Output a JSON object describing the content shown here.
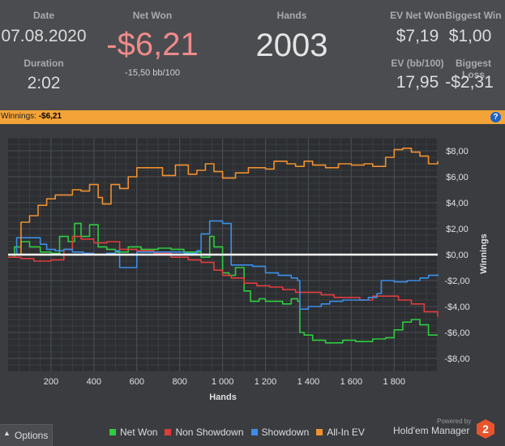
{
  "stats": {
    "date_label": "Date",
    "date_value": "07.08.2020",
    "duration_label": "Duration",
    "duration_value": "2:02",
    "netwon_label": "Net Won",
    "netwon_value": "-$6,21",
    "netwon_sub": "-15,50 bb/100",
    "hands_label": "Hands",
    "hands_value": "2003",
    "evnet_label": "EV Net Won",
    "evnet_value": "$7,19",
    "biggestwin_label": "Biggest Win",
    "biggestwin_value": "$1,00",
    "evbb_label": "EV (bb/100)",
    "evbb_value": "17,95",
    "biggestloss_label": "Biggest Loss",
    "biggestloss_value": "-$2,31"
  },
  "winnings_bar": {
    "label": "Winnings:",
    "value": "-$6,21",
    "help_icon": "help-icon"
  },
  "options_button": {
    "label": "Options"
  },
  "brand": {
    "powered_by": "Powered by",
    "name": "Hold'em Manager",
    "logo_number": "2"
  },
  "colors": {
    "net_won": "#2ecc40",
    "non_showdown": "#e03c3c",
    "showdown": "#3a8ee8",
    "all_in_ev": "#f09030",
    "accent_bar": "#f3a338",
    "negative_value": "#f08a8a"
  },
  "chart_data": {
    "type": "line",
    "xlabel": "Hands",
    "ylabel": "Winnings",
    "xlim": [
      0,
      2003
    ],
    "ylim": [
      -9,
      9
    ],
    "x_ticks": [
      200,
      400,
      600,
      800,
      1000,
      1200,
      1400,
      1600,
      1800
    ],
    "x_tick_labels": [
      "200",
      "400",
      "600",
      "800",
      "1 000",
      "1 200",
      "1 400",
      "1 600",
      "1 800"
    ],
    "y_ticks": [
      8,
      6,
      4,
      2,
      0,
      -2,
      -4,
      -6,
      -8
    ],
    "y_tick_labels": [
      "$8,00",
      "$6,00",
      "$4,00",
      "$2,00",
      "$0,00",
      "-$2,00",
      "-$4,00",
      "-$6,00",
      "-$8,00"
    ],
    "grid": true,
    "legend_position": "bottom",
    "series": [
      {
        "name": "Net Won",
        "color": "#2ecc40",
        "x": [
          0,
          30,
          60,
          100,
          150,
          200,
          240,
          280,
          310,
          340,
          380,
          420,
          460,
          500,
          560,
          620,
          700,
          760,
          820,
          900,
          940,
          960,
          1000,
          1030,
          1060,
          1100,
          1130,
          1170,
          1200,
          1240,
          1280,
          1320,
          1350,
          1360,
          1380,
          1420,
          1480,
          1560,
          1620,
          1700,
          1760,
          1800,
          1840,
          1880,
          1920,
          1960,
          2003
        ],
        "y": [
          -0.2,
          0.6,
          1.0,
          0.6,
          0.2,
          0.1,
          1.4,
          1.0,
          2.4,
          1.4,
          2.3,
          0.6,
          0.4,
          0.2,
          0.6,
          0.4,
          0.5,
          0.4,
          0.2,
          -0.2,
          1.4,
          0.6,
          -1.4,
          -1.6,
          -1.0,
          -2.8,
          -3.6,
          -3.4,
          -3.6,
          -3.6,
          -3.8,
          -3.4,
          -3.6,
          -6.0,
          -6.2,
          -6.6,
          -6.8,
          -6.6,
          -6.7,
          -6.5,
          -6.4,
          -5.8,
          -5.2,
          -5.0,
          -5.4,
          -6.2,
          -6.2
        ]
      },
      {
        "name": "Non Showdown",
        "color": "#e03c3c",
        "x": [
          0,
          60,
          120,
          200,
          260,
          300,
          340,
          400,
          460,
          520,
          600,
          680,
          760,
          840,
          900,
          960,
          1000,
          1040,
          1100,
          1160,
          1220,
          1280,
          1340,
          1400,
          1460,
          1520,
          1580,
          1640,
          1700,
          1760,
          1820,
          1880,
          1940,
          2003
        ],
        "y": [
          -0.2,
          -0.3,
          -0.5,
          -0.4,
          0.4,
          1.4,
          1.2,
          0.9,
          1.0,
          0.4,
          0.3,
          0.1,
          -0.2,
          -0.4,
          -0.6,
          -1.2,
          -1.6,
          -1.8,
          -2.2,
          -2.4,
          -2.5,
          -2.7,
          -2.9,
          -2.9,
          -3.1,
          -3.3,
          -3.3,
          -3.5,
          -3.2,
          -3.2,
          -3.5,
          -3.8,
          -4.4,
          -4.8
        ]
      },
      {
        "name": "Showdown",
        "color": "#3a8ee8",
        "x": [
          0,
          40,
          100,
          150,
          180,
          220,
          260,
          300,
          350,
          400,
          460,
          500,
          520,
          560,
          600,
          640,
          700,
          760,
          820,
          880,
          900,
          940,
          1000,
          1040,
          1100,
          1140,
          1200,
          1260,
          1320,
          1350,
          1360,
          1400,
          1460,
          1500,
          1560,
          1620,
          1680,
          1720,
          1740,
          1800,
          1860,
          1920,
          1960,
          2003
        ],
        "y": [
          0,
          1.3,
          1.3,
          0.8,
          0.4,
          0.3,
          0.4,
          0.2,
          0.1,
          0.0,
          0.1,
          0.3,
          -1.0,
          -1.0,
          0.2,
          0.2,
          0.2,
          0.2,
          0.1,
          0.3,
          1.6,
          2.6,
          2.4,
          -0.8,
          -0.8,
          -0.9,
          -1.4,
          -1.6,
          -1.8,
          -2.0,
          -4.2,
          -4.0,
          -3.8,
          -3.6,
          -3.5,
          -3.5,
          -3.3,
          -3.0,
          -2.0,
          -2.1,
          -2.0,
          -1.8,
          -1.6,
          -1.5
        ]
      },
      {
        "name": "All-In EV",
        "color": "#f09030",
        "x": [
          0,
          60,
          100,
          140,
          180,
          220,
          260,
          300,
          340,
          380,
          420,
          440,
          480,
          520,
          560,
          600,
          660,
          720,
          780,
          840,
          880,
          920,
          960,
          1000,
          1060,
          1120,
          1200,
          1240,
          1300,
          1340,
          1380,
          1420,
          1480,
          1540,
          1600,
          1660,
          1700,
          1760,
          1800,
          1840,
          1880,
          1920,
          1960,
          2003
        ],
        "y": [
          0,
          2.5,
          3.0,
          3.8,
          4.3,
          4.6,
          4.6,
          5.0,
          4.9,
          5.4,
          4.4,
          3.9,
          5.4,
          5.1,
          6.0,
          6.7,
          6.7,
          6.1,
          6.9,
          6.2,
          6.5,
          7.0,
          6.4,
          5.9,
          6.3,
          6.7,
          6.6,
          7.2,
          7.0,
          6.8,
          7.2,
          6.9,
          6.7,
          7.0,
          6.9,
          7.0,
          6.8,
          7.5,
          8.1,
          8.2,
          7.9,
          7.6,
          7.0,
          7.2
        ]
      }
    ]
  }
}
